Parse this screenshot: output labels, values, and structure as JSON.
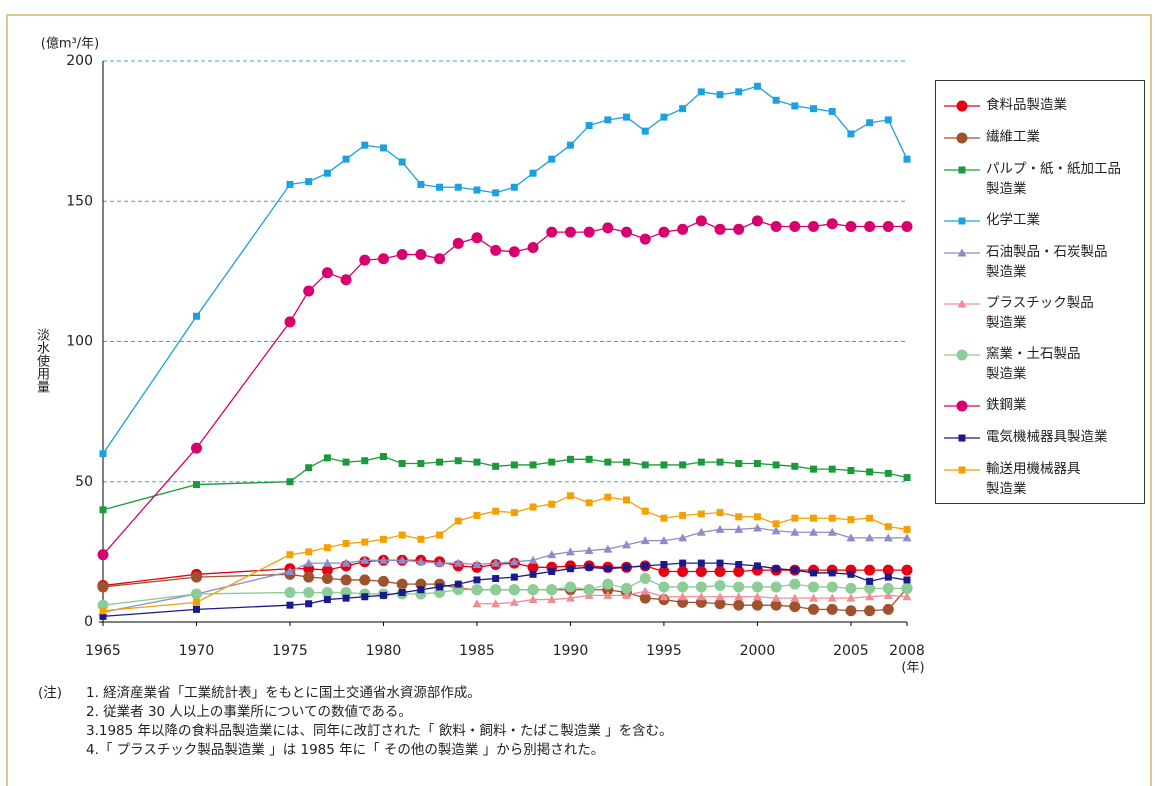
{
  "chart_data": {
    "type": "line",
    "y_unit_label": "(億m³/年)",
    "y_axis_title": "淡水使用量",
    "x_unit_label": "(年)",
    "x": [
      1965,
      1970,
      1975,
      1976,
      1977,
      1978,
      1979,
      1980,
      1981,
      1982,
      1983,
      1984,
      1985,
      1986,
      1987,
      1988,
      1989,
      1990,
      1991,
      1992,
      1993,
      1994,
      1995,
      1996,
      1997,
      1998,
      1999,
      2000,
      2001,
      2002,
      2003,
      2004,
      2005,
      2006,
      2007,
      2008
    ],
    "xlim": [
      1965,
      2008
    ],
    "xticks": [
      1965,
      1970,
      1975,
      1980,
      1985,
      1990,
      1995,
      2000,
      2005,
      2008
    ],
    "ylim": [
      0,
      200
    ],
    "yticks": [
      0,
      50,
      100,
      150,
      200
    ],
    "grid": true,
    "series": [
      {
        "name": "食料品製造業",
        "color": "#e60012",
        "marker": "circle",
        "values": [
          13,
          17,
          19,
          19,
          18.5,
          20,
          21.5,
          22,
          22,
          22,
          21.5,
          20,
          19.5,
          20.5,
          21,
          19.5,
          19.5,
          20,
          20,
          19.5,
          19.5,
          20,
          18,
          18,
          18,
          18,
          18,
          18.5,
          18.5,
          18.5,
          18.5,
          18.5,
          18.5,
          18.5,
          18.5,
          18.5
        ]
      },
      {
        "name": "繊維工業",
        "color": "#a0522d",
        "marker": "circle",
        "values": [
          12.5,
          16,
          17,
          16,
          15.5,
          15,
          15,
          14.5,
          13.5,
          13.5,
          13.5,
          12,
          11.5,
          11.5,
          11.5,
          11.5,
          11.5,
          11.5,
          11.5,
          11.5,
          10.5,
          8.5,
          8,
          7,
          7,
          6.5,
          6,
          6,
          6,
          5.5,
          4.5,
          4.5,
          4,
          4,
          4.5,
          12
        ]
      },
      {
        "name": "パルプ・紙・紙加工品\n製造業",
        "color": "#1a9a3a",
        "marker": "square",
        "values": [
          40,
          49,
          50,
          55,
          58.5,
          57,
          57.5,
          59,
          56.5,
          56.5,
          57,
          57.5,
          57,
          55.5,
          56,
          56,
          57,
          58,
          58,
          57,
          57,
          56,
          56,
          56,
          57,
          57,
          56.5,
          56.5,
          56,
          55.5,
          54.5,
          54.5,
          54,
          53.5,
          53,
          51.5
        ]
      },
      {
        "name": "化学工業",
        "color": "#1ca0e0",
        "marker": "square",
        "values": [
          60,
          109,
          156,
          157,
          160,
          165,
          170,
          169,
          164,
          156,
          155,
          155,
          154,
          153,
          155,
          160,
          165,
          170,
          177,
          179,
          180,
          175,
          180,
          183,
          189,
          188,
          189,
          191,
          186,
          184,
          183,
          182,
          174,
          178,
          179,
          165
        ]
      },
      {
        "name": "石油製品・石炭製品\n製造業",
        "color": "#8c8cc8",
        "marker": "triangle",
        "values": [
          3.5,
          10,
          18,
          21,
          21,
          21,
          22,
          22,
          22,
          21.5,
          21,
          21,
          20.5,
          21,
          21.5,
          22,
          24,
          25,
          25.5,
          26,
          27.5,
          29,
          29,
          30,
          32,
          33,
          33,
          33.5,
          32.5,
          32,
          32,
          32,
          30,
          30,
          30,
          30
        ]
      },
      {
        "name": "プラスチック製品\n製造業",
        "color": "#f08c96",
        "marker": "triangle",
        "values": [
          null,
          null,
          null,
          null,
          null,
          null,
          null,
          null,
          null,
          null,
          null,
          null,
          6.5,
          6.5,
          7,
          8,
          8,
          8.5,
          9.5,
          9.5,
          9.5,
          11,
          9,
          9,
          9,
          9,
          9,
          9,
          8.5,
          8.5,
          8.5,
          8.5,
          8.5,
          9,
          9.5,
          9
        ]
      },
      {
        "name": "窯業・土石製品\n製造業",
        "color": "#8ccc96",
        "marker": "circle",
        "values": [
          6,
          10,
          10.5,
          10.5,
          10.5,
          10.5,
          10,
          10,
          10,
          10,
          10.5,
          11.5,
          11.5,
          11.5,
          11.5,
          11.5,
          11.5,
          12.5,
          11.5,
          13.5,
          12,
          15.5,
          12.5,
          12.5,
          12.5,
          13,
          12.5,
          12.5,
          12.5,
          13.5,
          12.5,
          12.5,
          12,
          12,
          12,
          12
        ]
      },
      {
        "name": "鉄鋼業",
        "color": "#d6006e",
        "marker": "circle",
        "values": [
          24,
          62,
          107,
          118,
          124.5,
          122,
          129,
          129.5,
          131,
          131,
          129.5,
          135,
          137,
          132.5,
          132,
          133.5,
          139,
          139,
          139,
          140.5,
          139,
          136.5,
          139,
          140,
          143,
          140,
          140,
          143,
          141,
          141,
          141,
          142,
          141,
          141,
          141,
          141
        ]
      },
      {
        "name": "電気機械器具製造業",
        "color": "#1a1a8c",
        "marker": "square",
        "values": [
          2,
          4.5,
          6,
          6.5,
          8,
          8.5,
          9,
          9.5,
          10.5,
          11.5,
          12.5,
          13.5,
          15,
          15.5,
          16,
          17,
          18,
          19,
          19.5,
          19,
          19.5,
          20,
          20.5,
          21,
          21,
          21,
          20.5,
          20,
          19,
          18.5,
          17.5,
          17.5,
          17,
          14.5,
          16,
          15
        ]
      },
      {
        "name": "輸送用機械器具\n製造業",
        "color": "#f5a000",
        "marker": "square",
        "values": [
          4,
          7,
          24,
          25,
          26.5,
          28,
          28.5,
          29.5,
          31,
          29.5,
          31,
          36,
          38,
          39.5,
          39,
          41,
          42,
          45,
          42.5,
          44.5,
          43.5,
          39.5,
          37,
          38,
          38.5,
          39,
          37.5,
          37.5,
          35,
          37,
          37,
          37,
          36.5,
          37,
          34,
          33
        ]
      }
    ]
  },
  "notes": {
    "prefix": "(注)",
    "lines": [
      "1. 経済産業省「工業統計表」をもとに国土交通省水資源部作成。",
      "2. 従業者 30 人以上の事業所についての数値である。",
      "3.1985 年以降の食料品製造業には、同年に改訂された「 飲料・飼料・たばこ製造業 」を含む。",
      "4.「 プラスチック製品製造業 」は 1985 年に「 その他の製造業 」から別掲された。"
    ]
  }
}
